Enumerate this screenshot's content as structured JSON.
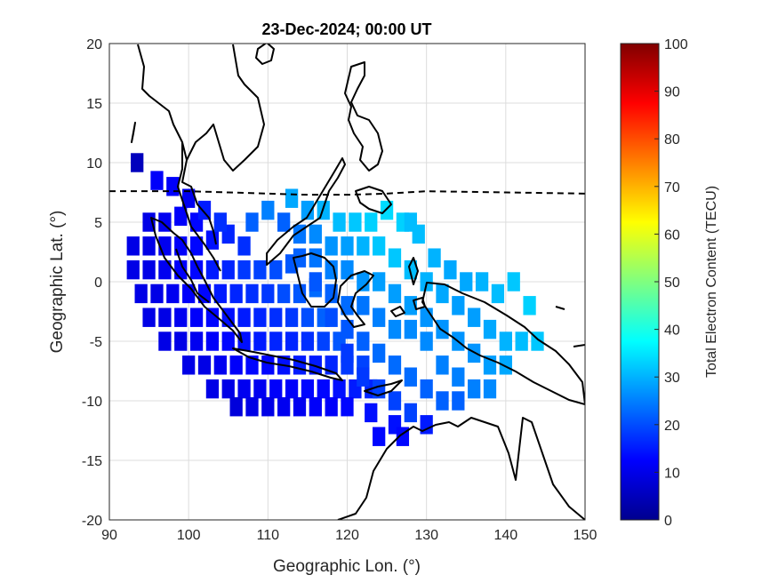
{
  "chart_data": {
    "type": "heatmap",
    "title": "23-Dec-2024; 00:00 UT",
    "xlabel": "Geographic Lon. (°)",
    "ylabel": "Geographic Lat. (°)",
    "xlim": [
      90,
      150
    ],
    "ylim": [
      -20,
      20
    ],
    "xticks": [
      "90",
      "100",
      "110",
      "120",
      "130",
      "140",
      "150"
    ],
    "yticks": [
      "20",
      "15",
      "10",
      "5",
      "0",
      "-5",
      "-10",
      "-15",
      "-20"
    ],
    "grid": true,
    "colorbar": {
      "label": "Total Electron Content (TECU)",
      "range": [
        0,
        100
      ],
      "ticks": [
        "100",
        "90",
        "80",
        "70",
        "60",
        "50",
        "40",
        "30",
        "20",
        "10",
        "0"
      ],
      "colormap": "jet"
    },
    "magnetic_equator": {
      "style": "dashed",
      "points": [
        [
          90,
          7.6
        ],
        [
          100,
          7.6
        ],
        [
          105,
          7.5
        ],
        [
          110,
          7.4
        ],
        [
          115,
          7.3
        ],
        [
          120,
          7.3
        ],
        [
          125,
          7.4
        ],
        [
          130,
          7.6
        ],
        [
          140,
          7.5
        ],
        [
          150,
          7.4
        ]
      ]
    },
    "cells": [
      [
        93.5,
        10,
        6
      ],
      [
        96,
        8.5,
        12
      ],
      [
        98,
        8,
        12
      ],
      [
        100,
        7,
        11
      ],
      [
        95,
        5,
        10
      ],
      [
        97,
        5,
        11
      ],
      [
        99,
        5.5,
        12
      ],
      [
        101,
        5,
        13
      ],
      [
        93,
        3,
        10
      ],
      [
        95,
        3,
        10
      ],
      [
        97,
        3,
        11
      ],
      [
        99,
        3,
        12
      ],
      [
        101,
        3,
        13
      ],
      [
        103,
        3.5,
        14
      ],
      [
        105,
        4,
        16
      ],
      [
        107,
        3,
        17
      ],
      [
        93,
        1,
        10
      ],
      [
        95,
        1,
        10
      ],
      [
        97,
        1,
        11
      ],
      [
        99,
        1,
        12
      ],
      [
        101,
        1,
        13
      ],
      [
        103,
        1,
        15
      ],
      [
        105,
        1,
        16
      ],
      [
        107,
        1,
        18
      ],
      [
        109,
        1,
        19
      ],
      [
        111,
        1,
        20
      ],
      [
        113,
        1.5,
        21
      ],
      [
        94,
        -1,
        10
      ],
      [
        96,
        -1,
        10
      ],
      [
        98,
        -1,
        11
      ],
      [
        100,
        -1,
        12
      ],
      [
        102,
        -1,
        13
      ],
      [
        104,
        -1,
        15
      ],
      [
        106,
        -1,
        16
      ],
      [
        108,
        -1,
        17
      ],
      [
        110,
        -1,
        18
      ],
      [
        112,
        -1,
        20
      ],
      [
        114,
        -1,
        21
      ],
      [
        116,
        -0.5,
        23
      ],
      [
        95,
        -3,
        10
      ],
      [
        97,
        -3,
        10
      ],
      [
        99,
        -3,
        11
      ],
      [
        101,
        -3,
        12
      ],
      [
        103,
        -3,
        13
      ],
      [
        105,
        -3,
        14
      ],
      [
        107,
        -3,
        15
      ],
      [
        109,
        -3,
        16
      ],
      [
        111,
        -3,
        17
      ],
      [
        113,
        -3,
        18
      ],
      [
        115,
        -3,
        20
      ],
      [
        117,
        -3,
        22
      ],
      [
        97,
        -5,
        10
      ],
      [
        99,
        -5,
        10
      ],
      [
        101,
        -5,
        11
      ],
      [
        103,
        -5,
        12
      ],
      [
        105,
        -5,
        13
      ],
      [
        107,
        -5,
        14
      ],
      [
        109,
        -5,
        15
      ],
      [
        111,
        -5,
        16
      ],
      [
        113,
        -5,
        16
      ],
      [
        115,
        -5,
        17
      ],
      [
        117,
        -5,
        19
      ],
      [
        119,
        -5,
        21
      ],
      [
        100,
        -7,
        10
      ],
      [
        102,
        -7,
        10
      ],
      [
        104,
        -7,
        11
      ],
      [
        106,
        -7,
        12
      ],
      [
        108,
        -7,
        13
      ],
      [
        110,
        -7,
        13
      ],
      [
        112,
        -7,
        14
      ],
      [
        114,
        -7,
        15
      ],
      [
        116,
        -7,
        15
      ],
      [
        118,
        -7,
        16
      ],
      [
        120,
        -7,
        18
      ],
      [
        122,
        -7,
        19
      ],
      [
        103,
        -9,
        10
      ],
      [
        105,
        -9,
        10
      ],
      [
        107,
        -9,
        11
      ],
      [
        109,
        -9,
        11
      ],
      [
        111,
        -9,
        12
      ],
      [
        113,
        -9,
        12
      ],
      [
        115,
        -9,
        13
      ],
      [
        117,
        -9,
        13
      ],
      [
        119,
        -9,
        14
      ],
      [
        121,
        -9,
        15
      ],
      [
        123,
        -9,
        16
      ],
      [
        106,
        -10.5,
        9
      ],
      [
        108,
        -10.5,
        10
      ],
      [
        110,
        -10.5,
        10
      ],
      [
        112,
        -10.5,
        11
      ],
      [
        114,
        -10.5,
        11
      ],
      [
        116,
        -10.5,
        12
      ],
      [
        118,
        -10.5,
        12
      ],
      [
        120,
        -10.5,
        13
      ],
      [
        123,
        -11,
        14
      ],
      [
        117,
        6,
        30
      ],
      [
        119,
        5,
        31
      ],
      [
        121,
        5,
        32
      ],
      [
        123,
        5,
        33
      ],
      [
        125,
        6,
        34
      ],
      [
        127,
        5,
        33
      ],
      [
        128,
        5,
        31
      ],
      [
        129,
        4,
        31
      ],
      [
        131,
        2,
        30
      ],
      [
        133,
        1,
        29
      ],
      [
        135,
        0,
        29
      ],
      [
        137,
        0,
        30
      ],
      [
        139,
        -1,
        31
      ],
      [
        141,
        0,
        32
      ],
      [
        143,
        -2,
        33
      ],
      [
        112,
        5,
        22
      ],
      [
        114,
        4,
        24
      ],
      [
        116,
        4,
        26
      ],
      [
        118,
        3,
        27
      ],
      [
        120,
        3,
        28
      ],
      [
        122,
        3,
        30
      ],
      [
        124,
        3,
        32
      ],
      [
        126,
        2,
        32
      ],
      [
        128,
        1,
        31
      ],
      [
        130,
        0,
        30
      ],
      [
        132,
        -1,
        29
      ],
      [
        134,
        -2,
        28
      ],
      [
        136,
        -3,
        28
      ],
      [
        138,
        -4,
        29
      ],
      [
        140,
        -5,
        30
      ],
      [
        142,
        -5,
        31
      ],
      [
        144,
        -5,
        32
      ],
      [
        114,
        2,
        22
      ],
      [
        116,
        2,
        24
      ],
      [
        118,
        1,
        25
      ],
      [
        120,
        1,
        26
      ],
      [
        122,
        0,
        27
      ],
      [
        124,
        0,
        28
      ],
      [
        126,
        -1,
        28
      ],
      [
        128,
        -2,
        28
      ],
      [
        130,
        -3,
        27
      ],
      [
        132,
        -4,
        27
      ],
      [
        134,
        -5,
        27
      ],
      [
        136,
        -6,
        27
      ],
      [
        138,
        -7,
        28
      ],
      [
        140,
        -7,
        29
      ],
      [
        116,
        0,
        21
      ],
      [
        118,
        -1,
        22
      ],
      [
        120,
        -2,
        23
      ],
      [
        122,
        -2,
        24
      ],
      [
        124,
        -3,
        25
      ],
      [
        126,
        -4,
        26
      ],
      [
        128,
        -4,
        26
      ],
      [
        130,
        -5,
        26
      ],
      [
        132,
        -7,
        25
      ],
      [
        134,
        -8,
        25
      ],
      [
        136,
        -9,
        25
      ],
      [
        138,
        -9,
        26
      ],
      [
        118,
        -3,
        20
      ],
      [
        120,
        -4,
        21
      ],
      [
        122,
        -5,
        22
      ],
      [
        124,
        -6,
        23
      ],
      [
        126,
        -7,
        23
      ],
      [
        128,
        -8,
        23
      ],
      [
        130,
        -9,
        22
      ],
      [
        132,
        -10,
        22
      ],
      [
        134,
        -10,
        22
      ],
      [
        120,
        -6,
        18
      ],
      [
        122,
        -8,
        18
      ],
      [
        124,
        -9,
        19
      ],
      [
        126,
        -10,
        19
      ],
      [
        128,
        -11,
        19
      ],
      [
        130,
        -12,
        15
      ],
      [
        126,
        -12,
        14
      ],
      [
        124,
        -13,
        13
      ],
      [
        127,
        -13,
        13
      ],
      [
        115,
        6,
        28
      ],
      [
        113,
        7,
        29
      ],
      [
        110,
        6,
        25
      ],
      [
        108,
        5,
        22
      ],
      [
        104,
        5,
        17
      ],
      [
        102,
        6,
        15
      ]
    ]
  }
}
